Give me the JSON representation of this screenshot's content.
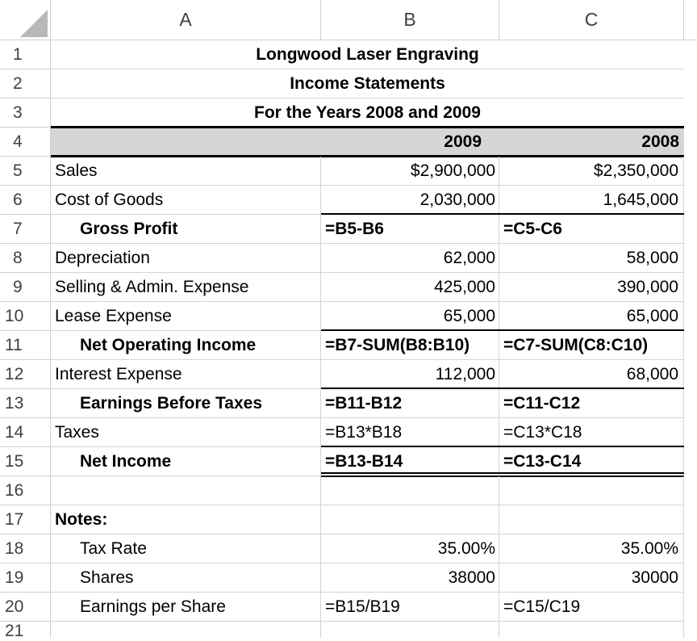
{
  "columns": [
    "A",
    "B",
    "C"
  ],
  "rows": [
    "1",
    "2",
    "3",
    "4",
    "5",
    "6",
    "7",
    "8",
    "9",
    "10",
    "11",
    "12",
    "13",
    "14",
    "15",
    "16",
    "17",
    "18",
    "19",
    "20",
    "21"
  ],
  "header": {
    "company": "Longwood Laser Engraving",
    "statement": "Income Statements",
    "period": "For the Years 2008 and 2009"
  },
  "year_row": {
    "b": "2009",
    "c": "2008"
  },
  "lines": [
    {
      "label": "Sales",
      "b": "$2,900,000",
      "c": "$2,350,000"
    },
    {
      "label": "Cost of Goods",
      "b": "2,030,000",
      "c": "1,645,000"
    },
    {
      "label": "Gross Profit",
      "b": "=B5-B6",
      "c": "=C5-C6"
    },
    {
      "label": "Depreciation",
      "b": "62,000",
      "c": "58,000"
    },
    {
      "label": "Selling & Admin. Expense",
      "b": "425,000",
      "c": "390,000"
    },
    {
      "label": "Lease Expense",
      "b": "65,000",
      "c": "65,000"
    },
    {
      "label": "Net Operating Income",
      "b": "=B7-SUM(B8:B10)",
      "c": "=C7-SUM(C8:C10)"
    },
    {
      "label": "Interest Expense",
      "b": "112,000",
      "c": "68,000"
    },
    {
      "label": "Earnings Before Taxes",
      "b": "=B11-B12",
      "c": "=C11-C12"
    },
    {
      "label": "Taxes",
      "b": "=B13*B18",
      "c": "=C13*C18"
    },
    {
      "label": "Net Income",
      "b": "=B13-B14",
      "c": "=C13-C14"
    }
  ],
  "notes": {
    "heading": "Notes:",
    "items": [
      {
        "label": "Tax Rate",
        "b": "35.00%",
        "c": "35.00%"
      },
      {
        "label": "Shares",
        "b": "38000",
        "c": "30000"
      },
      {
        "label": "Earnings per Share",
        "b": "=B15/B19",
        "c": "=C15/C19"
      }
    ]
  }
}
